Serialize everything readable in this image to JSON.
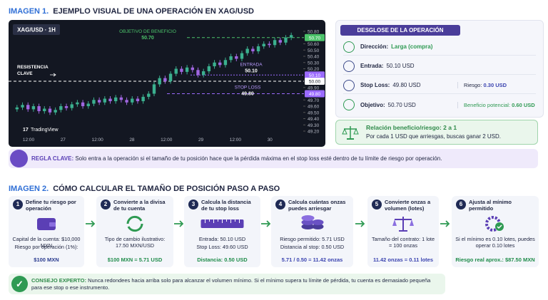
{
  "section1": {
    "label": "IMAGEN 1.",
    "title": "EJEMPLO VISUAL DE UNA OPERACIÓN EN XAG/USD"
  },
  "chart_data": {
    "type": "candlestick",
    "symbol": "XAG/USD · 1H",
    "brand": "TradingView",
    "ylim": [
      49.2,
      50.8
    ],
    "yticks": [
      {
        "value": 50.8,
        "label": "50.80"
      },
      {
        "value": 50.6,
        "label": "50.60"
      },
      {
        "value": 50.5,
        "label": "50.50"
      },
      {
        "value": 50.4,
        "label": "50.40"
      },
      {
        "value": 50.3,
        "label": "50.30"
      },
      {
        "value": 50.2,
        "label": "50.20"
      },
      {
        "value": 49.9,
        "label": "49.90"
      },
      {
        "value": 49.7,
        "label": "49.70"
      },
      {
        "value": 49.6,
        "label": "49.60"
      },
      {
        "value": 49.5,
        "label": "49.50"
      },
      {
        "value": 49.4,
        "label": "49.40"
      },
      {
        "value": 49.3,
        "label": "49.30"
      },
      {
        "value": 49.2,
        "label": "49.20"
      }
    ],
    "xticks": [
      "12:00",
      "27",
      "12:00",
      "28",
      "12:00",
      "29",
      "12:00",
      "30"
    ],
    "up_color": "#3bb08f",
    "down_color": "#a066e0",
    "candles": [
      [
        49.55,
        49.62,
        49.51,
        49.58
      ],
      [
        49.58,
        49.66,
        49.54,
        49.62
      ],
      [
        49.62,
        49.66,
        49.51,
        49.55
      ],
      [
        49.55,
        49.64,
        49.51,
        49.6
      ],
      [
        49.6,
        49.64,
        49.48,
        49.52
      ],
      [
        49.52,
        49.6,
        49.48,
        49.56
      ],
      [
        49.56,
        49.6,
        49.46,
        49.5
      ],
      [
        49.5,
        49.58,
        49.46,
        49.54
      ],
      [
        49.54,
        49.64,
        49.5,
        49.6
      ],
      [
        49.6,
        49.64,
        49.53,
        49.57
      ],
      [
        49.57,
        49.67,
        49.53,
        49.63
      ],
      [
        49.63,
        49.7,
        49.59,
        49.66
      ],
      [
        49.66,
        49.7,
        49.56,
        49.6
      ],
      [
        49.6,
        49.68,
        49.56,
        49.64
      ],
      [
        49.64,
        49.74,
        49.6,
        49.7
      ],
      [
        49.7,
        49.74,
        49.62,
        49.66
      ],
      [
        49.66,
        49.76,
        49.62,
        49.72
      ],
      [
        49.72,
        49.76,
        49.64,
        49.68
      ],
      [
        49.68,
        49.78,
        49.64,
        49.74
      ],
      [
        49.74,
        49.78,
        49.66,
        49.7
      ],
      [
        49.7,
        49.74,
        49.62,
        49.66
      ],
      [
        49.66,
        49.76,
        49.62,
        49.72
      ],
      [
        49.72,
        49.76,
        49.64,
        49.68
      ],
      [
        49.68,
        49.79,
        49.64,
        49.75
      ],
      [
        49.75,
        49.84,
        49.71,
        49.8
      ],
      [
        49.8,
        49.99,
        49.76,
        49.95
      ],
      [
        49.95,
        50.09,
        49.91,
        50.05
      ],
      [
        50.05,
        50.09,
        49.96,
        50.0
      ],
      [
        50.0,
        50.16,
        49.96,
        50.12
      ],
      [
        50.12,
        50.24,
        50.08,
        50.2
      ],
      [
        50.2,
        50.24,
        50.11,
        50.15
      ],
      [
        50.15,
        50.26,
        50.11,
        50.22
      ],
      [
        50.22,
        50.26,
        50.14,
        50.18
      ],
      [
        50.18,
        50.22,
        50.06,
        50.1
      ],
      [
        50.1,
        50.2,
        50.06,
        50.16
      ],
      [
        50.16,
        50.28,
        50.12,
        50.24
      ],
      [
        50.24,
        50.34,
        50.2,
        50.3
      ],
      [
        50.3,
        50.34,
        50.22,
        50.26
      ],
      [
        50.26,
        50.38,
        50.22,
        50.34
      ],
      [
        50.34,
        50.44,
        50.3,
        50.4
      ],
      [
        50.4,
        50.44,
        50.32,
        50.36
      ],
      [
        50.36,
        50.49,
        50.32,
        50.45
      ],
      [
        50.45,
        50.56,
        50.41,
        50.52
      ],
      [
        50.52,
        50.56,
        50.44,
        50.48
      ],
      [
        50.48,
        50.6,
        50.44,
        50.56
      ],
      [
        50.56,
        50.64,
        50.52,
        50.6
      ],
      [
        50.6,
        50.64,
        50.54,
        50.58
      ],
      [
        50.58,
        50.7,
        50.54,
        50.66
      ],
      [
        50.66,
        50.7,
        50.58,
        50.62
      ],
      [
        50.62,
        50.74,
        50.58,
        50.7
      ],
      [
        50.7,
        50.78,
        50.66,
        50.74
      ]
    ],
    "levels": [
      {
        "name": "OBJETIVO DE BENEFICIO",
        "value": 50.7,
        "label": "50.70",
        "color": "#4cc36a"
      },
      {
        "name": "ENTRADA",
        "value": 50.1,
        "label": "50.10",
        "color": "#9b6bff"
      },
      {
        "name": "STOP LOSS",
        "value": 49.8,
        "label": "49.80",
        "color": "#9b6bff"
      },
      {
        "name": "RESISTENCIA CLAVE",
        "value": 50.0,
        "label": "50.00",
        "color": "#ffffff"
      }
    ]
  },
  "breakdown": {
    "title": "DESGLOSE DE LA OPERACIÓN",
    "rows": [
      {
        "label": "Dirección:",
        "value": "Larga (compra)"
      },
      {
        "label": "Entrada:",
        "value": "50.10 USD"
      },
      {
        "label": "Stop Loss:",
        "value": "49.80 USD",
        "extra_label": "Riesgo:",
        "extra_value": "0.30 USD"
      },
      {
        "label": "Objetivo:",
        "value": "50.70 USD",
        "extra_label": "Beneficio potencial:",
        "extra_value": "0.60 USD"
      }
    ]
  },
  "ratio": {
    "title": "Relación beneficio/riesgo: 2 a 1",
    "text": "Por cada 1 USD que arriesgas, buscas ganar 2 USD."
  },
  "rule": {
    "label": "REGLA CLAVE:",
    "text": "Solo entra a la operación si el tamaño de tu posición hace que la pérdida máxima en el stop loss esté dentro de tu límite de riesgo por operación."
  },
  "section2": {
    "label": "IMAGEN 2.",
    "title": "CÓMO CALCULAR EL TAMAÑO DE POSICIÓN PASO A PASO"
  },
  "steps": [
    {
      "number": "1",
      "title": "Define tu riesgo por operación",
      "lines": [
        "Capital de la cuenta: $10,000 MXN",
        "Riesgo por operación (1%):"
      ],
      "result": "$100 MXN"
    },
    {
      "number": "2",
      "title": "Convierte a la divisa de tu cuenta",
      "lines": [
        "Tipo de cambio ilustrativo: 17.50 MXN/USD"
      ],
      "result": "$100 MXN = 5.71 USD"
    },
    {
      "number": "3",
      "title": "Calcula la distancia de tu stop loss",
      "lines": [
        "Entrada: 50.10 USD",
        "Stop Loss: 49.60 USD"
      ],
      "result": "Distancia: 0.50 USD"
    },
    {
      "number": "4",
      "title": "Calcula cuántas onzas puedes arriesgar",
      "lines": [
        "Riesgo permitido: 5.71 USD",
        "Distancia al stop: 0.50 USD"
      ],
      "result": "5.71 / 0.50 = 11.42 onzas"
    },
    {
      "number": "5",
      "title": "Convierte onzas a volumen (lotes)",
      "lines": [
        "Tamaño del contrato: 1 lote = 100 onzas"
      ],
      "result": "11.42 onzas = 0.11 lotes"
    },
    {
      "number": "6",
      "title": "Ajusta al mínimo permitido",
      "lines": [
        "Si el mínimo es 0.10 lotes, puedes operar 0.10 lotes"
      ],
      "result": "Riesgo real aprox.: $87.50 MXN"
    }
  ],
  "tip": {
    "label": "CONSEJO EXPERTO:",
    "text": "Nunca redondees hacia arriba solo para alcanzar el volumen mínimo. Si el mínimo supera tu límite de pérdida, tu cuenta es demasiado pequeña para ese stop o ese instrumento."
  }
}
